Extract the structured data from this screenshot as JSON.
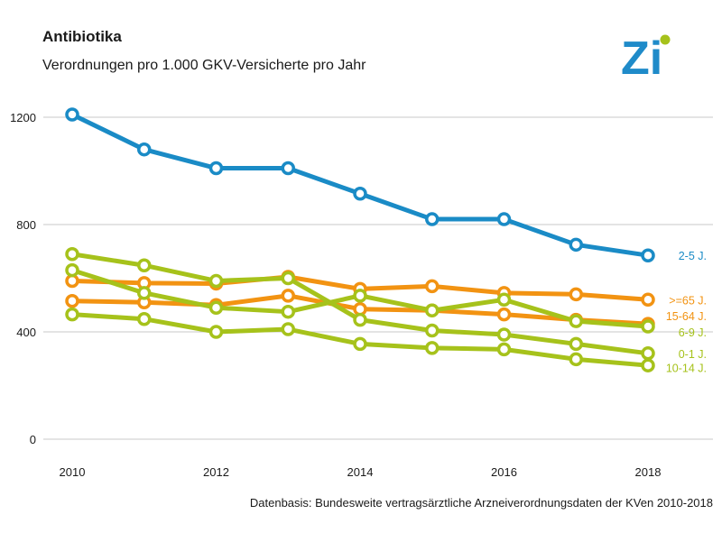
{
  "header": {
    "title": "Antibiotika",
    "subtitle": "Verordnungen pro 1.000 GKV-Versicherte pro Jahr"
  },
  "logo": {
    "text": "Zi",
    "color": "#1f8bc9",
    "dot_color": "#a6c21b"
  },
  "footer": {
    "source": "Datenbasis: Bundesweite vertragsärztliche Arzneiverordnungsdaten der KVen 2010-2018"
  },
  "chart_data": {
    "type": "line",
    "title": "Antibiotika",
    "subtitle": "Verordnungen pro 1.000 GKV-Versicherte pro Jahr",
    "xlabel": "",
    "ylabel": "",
    "x": [
      2010,
      2011,
      2012,
      2013,
      2014,
      2015,
      2016,
      2017,
      2018
    ],
    "x_ticks": [
      "2010",
      "2012",
      "2014",
      "2016",
      "2018"
    ],
    "y_ticks": [
      "0",
      "400",
      "800",
      "1200"
    ],
    "xlim": [
      2010,
      2018
    ],
    "ylim": [
      0,
      1300
    ],
    "grid": "horizontal",
    "legend": "labels at line ends",
    "series": [
      {
        "name": "2-5  J.",
        "color": "#1a8bc6",
        "values": [
          1210,
          1080,
          1010,
          1010,
          915,
          820,
          820,
          725,
          685
        ]
      },
      {
        "name": ">=65  J.",
        "color": "#f29312",
        "values": [
          590,
          582,
          580,
          605,
          560,
          570,
          545,
          540,
          520
        ]
      },
      {
        "name": "15-64  J.",
        "color": "#f29312",
        "values": [
          515,
          510,
          500,
          535,
          485,
          480,
          465,
          445,
          430
        ]
      },
      {
        "name": "6-9  J.",
        "color": "#a6c21b",
        "values": [
          630,
          545,
          490,
          475,
          535,
          480,
          520,
          440,
          420
        ]
      },
      {
        "name": "0-1  J.",
        "color": "#a6c21b",
        "values": [
          690,
          648,
          590,
          600,
          445,
          405,
          390,
          355,
          320
        ]
      },
      {
        "name": "10-14  J.",
        "color": "#a6c21b",
        "values": [
          465,
          448,
          400,
          410,
          355,
          340,
          335,
          298,
          275
        ]
      }
    ],
    "label_y_values": [
      685,
      520,
      460,
      400,
      320,
      268
    ]
  }
}
